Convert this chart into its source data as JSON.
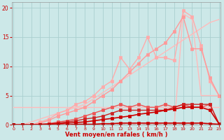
{
  "background_color": "#cce8e8",
  "grid_color": "#aacfcf",
  "xlabel": "Vent moyen/en rafales ( km/h )",
  "xlabel_color": "#cc0000",
  "tick_color": "#cc0000",
  "x_values": [
    0,
    1,
    2,
    3,
    4,
    5,
    6,
    7,
    8,
    9,
    10,
    11,
    12,
    13,
    14,
    15,
    16,
    17,
    18,
    19,
    20,
    21,
    22,
    23
  ],
  "series": [
    {
      "data": [
        3.0,
        3.0,
        3.0,
        3.0,
        3.0,
        3.0,
        3.0,
        3.0,
        3.0,
        3.0,
        3.0,
        3.0,
        3.0,
        3.0,
        3.0,
        3.0,
        3.0,
        3.0,
        3.0,
        3.0,
        3.0,
        3.0,
        3.0,
        3.0
      ],
      "color": "#ffbbbb",
      "linewidth": 1.0,
      "marker": null,
      "linestyle": "-"
    },
    {
      "data": [
        0,
        0,
        0,
        0,
        0,
        0,
        0,
        0,
        0,
        0,
        0,
        0,
        0,
        0,
        0,
        0,
        0,
        0,
        0,
        19.0,
        18.0,
        5.0,
        5.0,
        5.0
      ],
      "color": "#ffbbbb",
      "linewidth": 1.0,
      "marker": null,
      "linestyle": "-"
    },
    {
      "data": [
        0,
        0,
        0.5,
        1.0,
        1.5,
        2.0,
        2.5,
        3.0,
        3.5,
        4.5,
        5.5,
        6.5,
        7.5,
        8.5,
        9.5,
        10.5,
        11.5,
        12.5,
        13.5,
        14.5,
        15.5,
        16.5,
        17.5,
        18.0
      ],
      "color": "#ffbbbb",
      "linewidth": 1.0,
      "marker": null,
      "linestyle": "-"
    },
    {
      "data": [
        0,
        0,
        0,
        0.5,
        1.0,
        2.0,
        2.5,
        3.5,
        4.0,
        5.0,
        6.5,
        7.5,
        11.5,
        9.5,
        11.5,
        15.0,
        11.5,
        11.5,
        11.0,
        19.5,
        18.5,
        13.5,
        7.5,
        5.0
      ],
      "color": "#ffaaaa",
      "linewidth": 1.0,
      "marker": "s",
      "markersize": 2.5,
      "linestyle": "-"
    },
    {
      "data": [
        0,
        0,
        0,
        0.3,
        0.8,
        1.5,
        2.0,
        2.5,
        3.0,
        4.0,
        5.0,
        6.0,
        7.5,
        9.0,
        10.5,
        12.0,
        13.0,
        14.0,
        16.0,
        18.5,
        13.0,
        13.0,
        8.0,
        5.0
      ],
      "color": "#ff9999",
      "linewidth": 1.0,
      "marker": "s",
      "markersize": 2.5,
      "linestyle": "-"
    },
    {
      "data": [
        0,
        0,
        0,
        0.1,
        0.2,
        0.5,
        0.7,
        1.0,
        1.5,
        2.0,
        2.5,
        3.0,
        3.5,
        3.0,
        3.5,
        3.0,
        3.0,
        3.5,
        3.0,
        3.5,
        3.0,
        3.0,
        3.5,
        0.2
      ],
      "color": "#ee5555",
      "linewidth": 1.0,
      "marker": "s",
      "markersize": 2.5,
      "linestyle": "-"
    },
    {
      "data": [
        0,
        0,
        0,
        0.1,
        0.2,
        0.3,
        0.5,
        0.7,
        1.0,
        1.2,
        1.5,
        2.0,
        2.5,
        2.5,
        2.5,
        2.5,
        2.5,
        2.5,
        3.0,
        3.5,
        3.5,
        3.5,
        3.5,
        0.2
      ],
      "color": "#cc2222",
      "linewidth": 1.0,
      "marker": "s",
      "markersize": 2.5,
      "linestyle": "-"
    },
    {
      "data": [
        0,
        0,
        0,
        0,
        0.1,
        0.2,
        0.3,
        0.4,
        0.5,
        0.7,
        0.9,
        1.1,
        1.3,
        1.5,
        1.8,
        2.0,
        2.2,
        2.5,
        2.7,
        3.0,
        3.0,
        3.0,
        2.5,
        0.2
      ],
      "color": "#cc0000",
      "linewidth": 1.2,
      "marker": "s",
      "markersize": 2.5,
      "linestyle": "-"
    },
    {
      "data": [
        0,
        0,
        0,
        0,
        0,
        0,
        0,
        0.1,
        0.1,
        0.1,
        0.2,
        0.2,
        0.3,
        0.3,
        0.3,
        0.3,
        0.3,
        0.3,
        0.3,
        0.3,
        0.3,
        0.3,
        0.2,
        0.1
      ],
      "color": "#cc0000",
      "linewidth": 1.2,
      "marker": "s",
      "markersize": 2.5,
      "linestyle": "-"
    },
    {
      "data": [
        0,
        0,
        0,
        0,
        0,
        0,
        0,
        0,
        0,
        0,
        0,
        0,
        0,
        0,
        0,
        0,
        0,
        0,
        0,
        0,
        0,
        0,
        0,
        0
      ],
      "color": "#990000",
      "linewidth": 1.0,
      "marker": "d",
      "markersize": 2,
      "linestyle": "--"
    }
  ],
  "ylim": [
    0,
    21
  ],
  "xlim": [
    -0.2,
    23.2
  ],
  "yticks": [
    0,
    5,
    10,
    15,
    20
  ],
  "xticks": [
    0,
    1,
    2,
    3,
    4,
    5,
    6,
    7,
    8,
    9,
    10,
    11,
    12,
    13,
    14,
    15,
    16,
    17,
    18,
    19,
    20,
    21,
    22,
    23
  ]
}
